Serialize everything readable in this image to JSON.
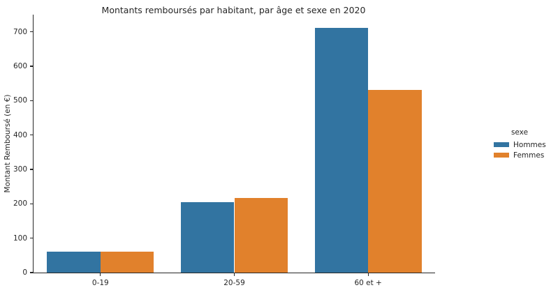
{
  "chart_data": {
    "type": "bar",
    "title": "Montants remboursés par habitant, par âge et sexe en 2020",
    "xlabel": "",
    "ylabel": "Montant Remboursé (en €)",
    "categories": [
      "0-19",
      "20-59",
      "60 et +"
    ],
    "series": [
      {
        "name": "Hommes",
        "color": "#3274a1",
        "values": [
          61,
          205,
          712
        ]
      },
      {
        "name": "Femmes",
        "color": "#e1812c",
        "values": [
          61,
          217,
          531
        ]
      }
    ],
    "ylim": [
      0,
      750
    ],
    "yticks": [
      0,
      100,
      200,
      300,
      400,
      500,
      600,
      700
    ],
    "grid": false,
    "background": "#ffffff",
    "text_color": "#262626",
    "legend": {
      "title": "sexe",
      "position": "right-outside"
    },
    "bar_group_fraction": 0.8
  }
}
